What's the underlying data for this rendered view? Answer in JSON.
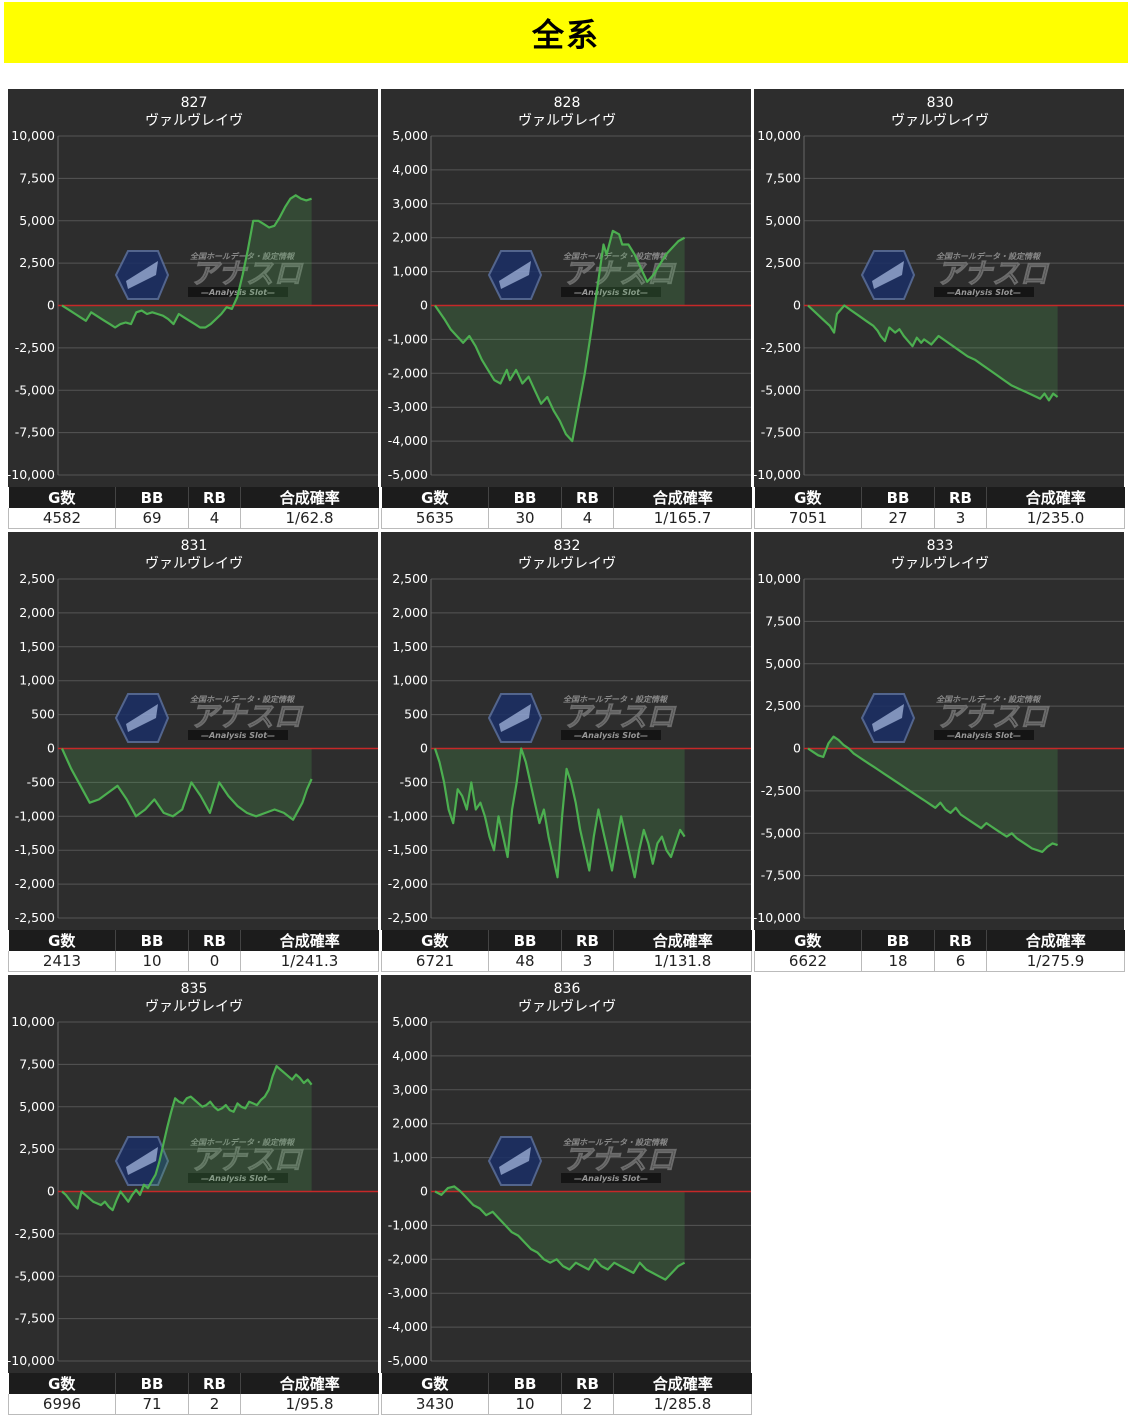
{
  "banner": {
    "title": "全系"
  },
  "table_headers": {
    "games": "G数",
    "bb": "BB",
    "rb": "RB",
    "rate": "合成確率"
  },
  "watermark": {
    "brand": "アナスロ",
    "tagline": "全国ホールデータ・設定情報",
    "sub": "—Analysis Slot—"
  },
  "colors": {
    "panel_bg": "#2d2d2d",
    "line": "#4caf50",
    "zero_line": "#c62828",
    "banner": "#ffff00"
  },
  "chart_data": [
    {
      "type": "area",
      "title": "827",
      "subtitle": "ヴァルヴレイヴ",
      "ylim": [
        -10000,
        10000
      ],
      "yticks": [
        10000,
        7500,
        5000,
        2500,
        0,
        -2500,
        -5000,
        -7500,
        -10000
      ],
      "ytick_labels": [
        "10,000",
        "7,500",
        "5,000",
        "2,500",
        "0",
        "-2,500",
        "-5,000",
        "-7,500",
        "-10,000"
      ],
      "stats": {
        "games": "4582",
        "bb": "69",
        "rb": "4",
        "rate": "1/62.8"
      },
      "x": [
        0,
        3,
        5,
        7,
        9,
        11,
        13,
        14,
        16,
        18,
        20,
        22,
        24,
        26,
        28,
        30,
        32,
        34,
        36,
        38,
        40,
        42,
        44,
        46,
        48,
        50,
        52,
        54,
        56,
        58,
        60,
        62,
        64,
        66,
        68,
        70,
        72,
        74,
        76,
        78,
        80,
        82,
        84,
        86,
        88,
        90,
        92,
        94
      ],
      "y": [
        0,
        -300,
        -500,
        -700,
        -900,
        -400,
        -600,
        -700,
        -900,
        -1100,
        -1300,
        -1100,
        -1000,
        -1100,
        -400,
        -300,
        -500,
        -400,
        -500,
        -600,
        -800,
        -1100,
        -500,
        -700,
        -900,
        -1100,
        -1300,
        -1300,
        -1100,
        -800,
        -500,
        -100,
        -200,
        500,
        1800,
        3300,
        5000,
        5000,
        4800,
        4600,
        4700,
        5200,
        5800,
        6300,
        6500,
        6300,
        6200,
        6300
      ]
    },
    {
      "type": "area",
      "title": "828",
      "subtitle": "ヴァルヴレイヴ",
      "ylim": [
        -5000,
        5000
      ],
      "yticks": [
        5000,
        4000,
        3000,
        2000,
        1000,
        0,
        -1000,
        -2000,
        -3000,
        -4000,
        -5000
      ],
      "ytick_labels": [
        "5,000",
        "4,000",
        "3,000",
        "2,000",
        "1,000",
        "0",
        "-1,000",
        "-2,000",
        "-3,000",
        "-4,000",
        "-5,000"
      ],
      "stats": {
        "games": "5635",
        "bb": "30",
        "rb": "4",
        "rate": "1/165.7"
      },
      "x": [
        0,
        3,
        5,
        7,
        9,
        11,
        13,
        15,
        17,
        19,
        21,
        23,
        24,
        26,
        28,
        30,
        32,
        34,
        36,
        38,
        40,
        42,
        44,
        46,
        48,
        50,
        52,
        54,
        55,
        57,
        59,
        60,
        62,
        64,
        66,
        68,
        70,
        72,
        74,
        76,
        78,
        80
      ],
      "y": [
        0,
        -400,
        -700,
        -900,
        -1100,
        -900,
        -1200,
        -1600,
        -1900,
        -2200,
        -2300,
        -1900,
        -2200,
        -1900,
        -2300,
        -2100,
        -2500,
        -2900,
        -2700,
        -3100,
        -3400,
        -3800,
        -4000,
        -3000,
        -2000,
        -800,
        500,
        1800,
        1500,
        2200,
        2100,
        1800,
        1800,
        1500,
        1100,
        700,
        900,
        1200,
        1500,
        1700,
        1900,
        2000
      ]
    },
    {
      "type": "area",
      "title": "830",
      "subtitle": "ヴァルヴレイヴ",
      "ylim": [
        -10000,
        10000
      ],
      "yticks": [
        10000,
        7500,
        5000,
        2500,
        0,
        -2500,
        -5000,
        -7500,
        -10000
      ],
      "ytick_labels": [
        "10,000",
        "7,500",
        "5,000",
        "2,500",
        "0",
        "-2,500",
        "-5,000",
        "-7,500",
        "-10,000"
      ],
      "stats": {
        "games": "7051",
        "bb": "27",
        "rb": "3",
        "rate": "1/235.0"
      },
      "x": [
        0,
        5,
        10,
        15,
        18,
        20,
        25,
        30,
        35,
        40,
        45,
        48,
        50,
        53,
        56,
        60,
        63,
        66,
        69,
        72,
        75,
        78,
        80,
        85,
        90,
        95,
        100,
        105,
        110,
        115,
        120,
        125,
        130,
        135,
        140,
        145,
        150,
        155,
        160,
        163,
        166,
        169,
        172
      ],
      "y": [
        0,
        -400,
        -800,
        -1200,
        -1600,
        -500,
        0,
        -300,
        -600,
        -900,
        -1200,
        -1500,
        -1800,
        -2100,
        -1300,
        -1600,
        -1400,
        -1800,
        -2100,
        -2400,
        -1900,
        -2200,
        -2000,
        -2300,
        -1800,
        -2100,
        -2400,
        -2700,
        -3000,
        -3200,
        -3500,
        -3800,
        -4100,
        -4400,
        -4700,
        -4900,
        -5100,
        -5300,
        -5500,
        -5200,
        -5600,
        -5200,
        -5400
      ]
    },
    {
      "type": "area",
      "title": "831",
      "subtitle": "ヴァルヴレイヴ",
      "ylim": [
        -2500,
        2500
      ],
      "yticks": [
        2500,
        2000,
        1500,
        1000,
        500,
        0,
        -500,
        -1000,
        -1500,
        -2000,
        -2500
      ],
      "ytick_labels": [
        "2,500",
        "2,000",
        "1,500",
        "1,000",
        "500",
        "0",
        "-500",
        "-1,000",
        "-1,500",
        "-2,000",
        "-2,500"
      ],
      "stats": {
        "games": "2413",
        "bb": "10",
        "rb": "0",
        "rate": "1/241.3"
      },
      "x": [
        0,
        2,
        4,
        6,
        8,
        10,
        12,
        14,
        16,
        18,
        20,
        22,
        24,
        26,
        28,
        30,
        32,
        34,
        36,
        38,
        40,
        42,
        44,
        46,
        48,
        50,
        52,
        53,
        54
      ],
      "y": [
        0,
        -300,
        -550,
        -800,
        -750,
        -650,
        -550,
        -750,
        -1000,
        -900,
        -750,
        -950,
        -1000,
        -900,
        -500,
        -700,
        -950,
        -500,
        -700,
        -850,
        -950,
        -1000,
        -950,
        -900,
        -950,
        -1050,
        -800,
        -600,
        -450
      ]
    },
    {
      "type": "area",
      "title": "832",
      "subtitle": "ヴァルヴレイヴ",
      "ylim": [
        -2500,
        2500
      ],
      "yticks": [
        2500,
        2000,
        1500,
        1000,
        500,
        0,
        -500,
        -1000,
        -1500,
        -2000,
        -2500
      ],
      "ytick_labels": [
        "2,500",
        "2,000",
        "1,500",
        "1,000",
        "500",
        "0",
        "-500",
        "-1,000",
        "-1,500",
        "-2,000",
        "-2,500"
      ],
      "stats": {
        "games": "6721",
        "bb": "48",
        "rb": "3",
        "rate": "1/131.8"
      },
      "x": [
        0,
        2,
        4,
        6,
        8,
        10,
        12,
        14,
        16,
        18,
        20,
        22,
        24,
        26,
        28,
        30,
        32,
        34,
        36,
        38,
        40,
        42,
        44,
        46,
        48,
        50,
        52,
        54,
        56,
        58,
        60,
        62,
        64,
        66,
        68,
        70,
        72,
        74,
        76,
        78,
        80,
        82,
        84,
        86,
        88,
        90,
        92,
        94,
        96,
        98,
        100,
        102,
        104,
        106,
        108,
        110
      ],
      "y": [
        0,
        -200,
        -500,
        -900,
        -1100,
        -600,
        -700,
        -900,
        -500,
        -900,
        -800,
        -1000,
        -1300,
        -1500,
        -1000,
        -1300,
        -1600,
        -900,
        -500,
        0,
        -200,
        -500,
        -800,
        -1100,
        -900,
        -1300,
        -1600,
        -1900,
        -1000,
        -300,
        -500,
        -800,
        -1200,
        -1500,
        -1800,
        -1300,
        -900,
        -1200,
        -1500,
        -1800,
        -1400,
        -1000,
        -1300,
        -1600,
        -1900,
        -1500,
        -1200,
        -1400,
        -1700,
        -1400,
        -1300,
        -1500,
        -1600,
        -1400,
        -1200,
        -1300
      ]
    },
    {
      "type": "area",
      "title": "833",
      "subtitle": "ヴァルヴレイヴ",
      "ylim": [
        -10000,
        10000
      ],
      "yticks": [
        10000,
        7500,
        5000,
        2500,
        0,
        -2500,
        -5000,
        -7500,
        -10000
      ],
      "ytick_labels": [
        "10,000",
        "7,500",
        "5,000",
        "2,500",
        "0",
        "-2,500",
        "-5,000",
        "-7,500",
        "-10,000"
      ],
      "stats": {
        "games": "6622",
        "bb": "18",
        "rb": "6",
        "rate": "1/275.9"
      },
      "x": [
        0,
        3,
        6,
        9,
        12,
        15,
        18,
        21,
        24,
        27,
        30,
        33,
        36,
        39,
        42,
        45,
        48,
        51,
        54,
        57,
        60,
        63,
        66,
        69,
        72,
        75,
        78,
        81,
        84,
        87,
        90,
        93,
        96,
        99,
        102,
        105,
        108,
        111,
        114,
        117,
        120,
        123,
        126,
        129,
        132,
        135,
        138,
        141,
        144,
        147
      ],
      "y": [
        0,
        -200,
        -400,
        -500,
        300,
        700,
        500,
        200,
        0,
        -300,
        -500,
        -700,
        -900,
        -1100,
        -1300,
        -1500,
        -1700,
        -1900,
        -2100,
        -2300,
        -2500,
        -2700,
        -2900,
        -3100,
        -3300,
        -3500,
        -3200,
        -3600,
        -3800,
        -3500,
        -3900,
        -4100,
        -4300,
        -4500,
        -4700,
        -4400,
        -4600,
        -4800,
        -5000,
        -5200,
        -5000,
        -5300,
        -5500,
        -5700,
        -5900,
        -6000,
        -6100,
        -5800,
        -5600,
        -5700
      ]
    },
    {
      "type": "area",
      "title": "835",
      "subtitle": "ヴァルヴレイヴ",
      "ylim": [
        -10000,
        10000
      ],
      "yticks": [
        10000,
        7500,
        5000,
        2500,
        0,
        -2500,
        -5000,
        -7500,
        -10000
      ],
      "ytick_labels": [
        "10,000",
        "7,500",
        "5,000",
        "2,500",
        "0",
        "-2,500",
        "-5,000",
        "-7,500",
        "-10,000"
      ],
      "stats": {
        "games": "6996",
        "bb": "71",
        "rb": "2",
        "rate": "1/95.8"
      },
      "x": [
        0,
        3,
        6,
        9,
        12,
        15,
        18,
        21,
        24,
        27,
        30,
        33,
        36,
        39,
        42,
        45,
        48,
        51,
        54,
        57,
        60,
        63,
        66,
        69,
        72,
        75,
        78,
        81,
        84,
        87,
        90,
        93,
        96,
        99,
        102,
        105,
        108,
        111,
        114,
        117,
        120,
        123,
        126,
        129,
        132,
        135,
        138,
        141,
        144,
        147,
        150,
        153,
        156,
        159,
        162,
        165,
        168,
        171,
        174,
        177,
        180,
        183,
        186,
        189,
        192
      ],
      "y": [
        0,
        -200,
        -500,
        -800,
        -1000,
        0,
        -200,
        -400,
        -600,
        -700,
        -800,
        -600,
        -900,
        -1100,
        -500,
        0,
        -300,
        -600,
        -200,
        100,
        -200,
        400,
        200,
        600,
        1000,
        1800,
        2800,
        3800,
        4700,
        5500,
        5300,
        5200,
        5500,
        5600,
        5400,
        5200,
        5000,
        5100,
        5300,
        5000,
        4800,
        4900,
        5100,
        4800,
        4700,
        5200,
        5000,
        4900,
        5300,
        5200,
        5100,
        5400,
        5600,
        6000,
        6800,
        7400,
        7200,
        7000,
        6800,
        6600,
        6900,
        6700,
        6400,
        6600,
        6300
      ]
    },
    {
      "type": "area",
      "title": "836",
      "subtitle": "ヴァルヴレイヴ",
      "ylim": [
        -5000,
        5000
      ],
      "yticks": [
        5000,
        4000,
        3000,
        2000,
        1000,
        0,
        -1000,
        -2000,
        -3000,
        -4000,
        -5000
      ],
      "ytick_labels": [
        "5,000",
        "4,000",
        "3,000",
        "2,000",
        "1,000",
        "0",
        "-1,000",
        "-2,000",
        "-3,000",
        "-4,000",
        "-5,000"
      ],
      "stats": {
        "games": "3430",
        "bb": "10",
        "rb": "2",
        "rate": "1/285.8"
      },
      "x": [
        0,
        2,
        4,
        6,
        8,
        10,
        12,
        14,
        16,
        18,
        20,
        22,
        24,
        26,
        28,
        30,
        32,
        34,
        36,
        38,
        40,
        42,
        44,
        46,
        48,
        50,
        52,
        54,
        56,
        58,
        60,
        62,
        64,
        66,
        68,
        70,
        72,
        74,
        76,
        78
      ],
      "y": [
        0,
        -100,
        100,
        150,
        0,
        -200,
        -400,
        -500,
        -700,
        -600,
        -800,
        -1000,
        -1200,
        -1300,
        -1500,
        -1700,
        -1800,
        -2000,
        -2100,
        -2000,
        -2200,
        -2300,
        -2100,
        -2200,
        -2300,
        -2000,
        -2200,
        -2300,
        -2100,
        -2200,
        -2300,
        -2400,
        -2100,
        -2300,
        -2400,
        -2500,
        -2600,
        -2400,
        -2200,
        -2100
      ]
    }
  ]
}
